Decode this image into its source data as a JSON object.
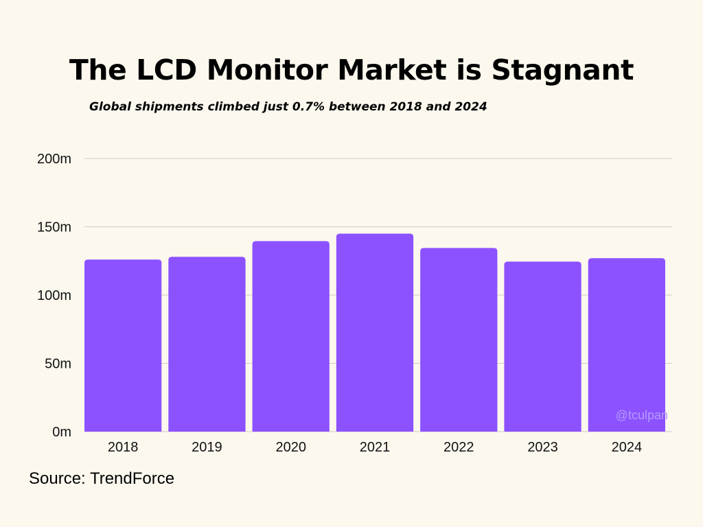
{
  "chart_data": {
    "type": "bar",
    "title": "The LCD Monitor Market is Stagnant",
    "subtitle": "Global shipments climbed just 0.7% between 2018 and 2024",
    "categories": [
      "2018",
      "2019",
      "2020",
      "2021",
      "2022",
      "2023",
      "2024"
    ],
    "values": [
      126,
      128,
      139.5,
      145,
      134.5,
      124.5,
      127
    ],
    "ylim": [
      0,
      200
    ],
    "yticks": [
      0,
      50,
      100,
      150,
      200
    ],
    "ytick_labels": [
      "0m",
      "50m",
      "100m",
      "150m",
      "200m"
    ],
    "grid": true,
    "bar_color": "#8c52ff",
    "grid_color": "#cfccc4",
    "source": "Source: TrendForce",
    "watermark": "@tculpan"
  }
}
